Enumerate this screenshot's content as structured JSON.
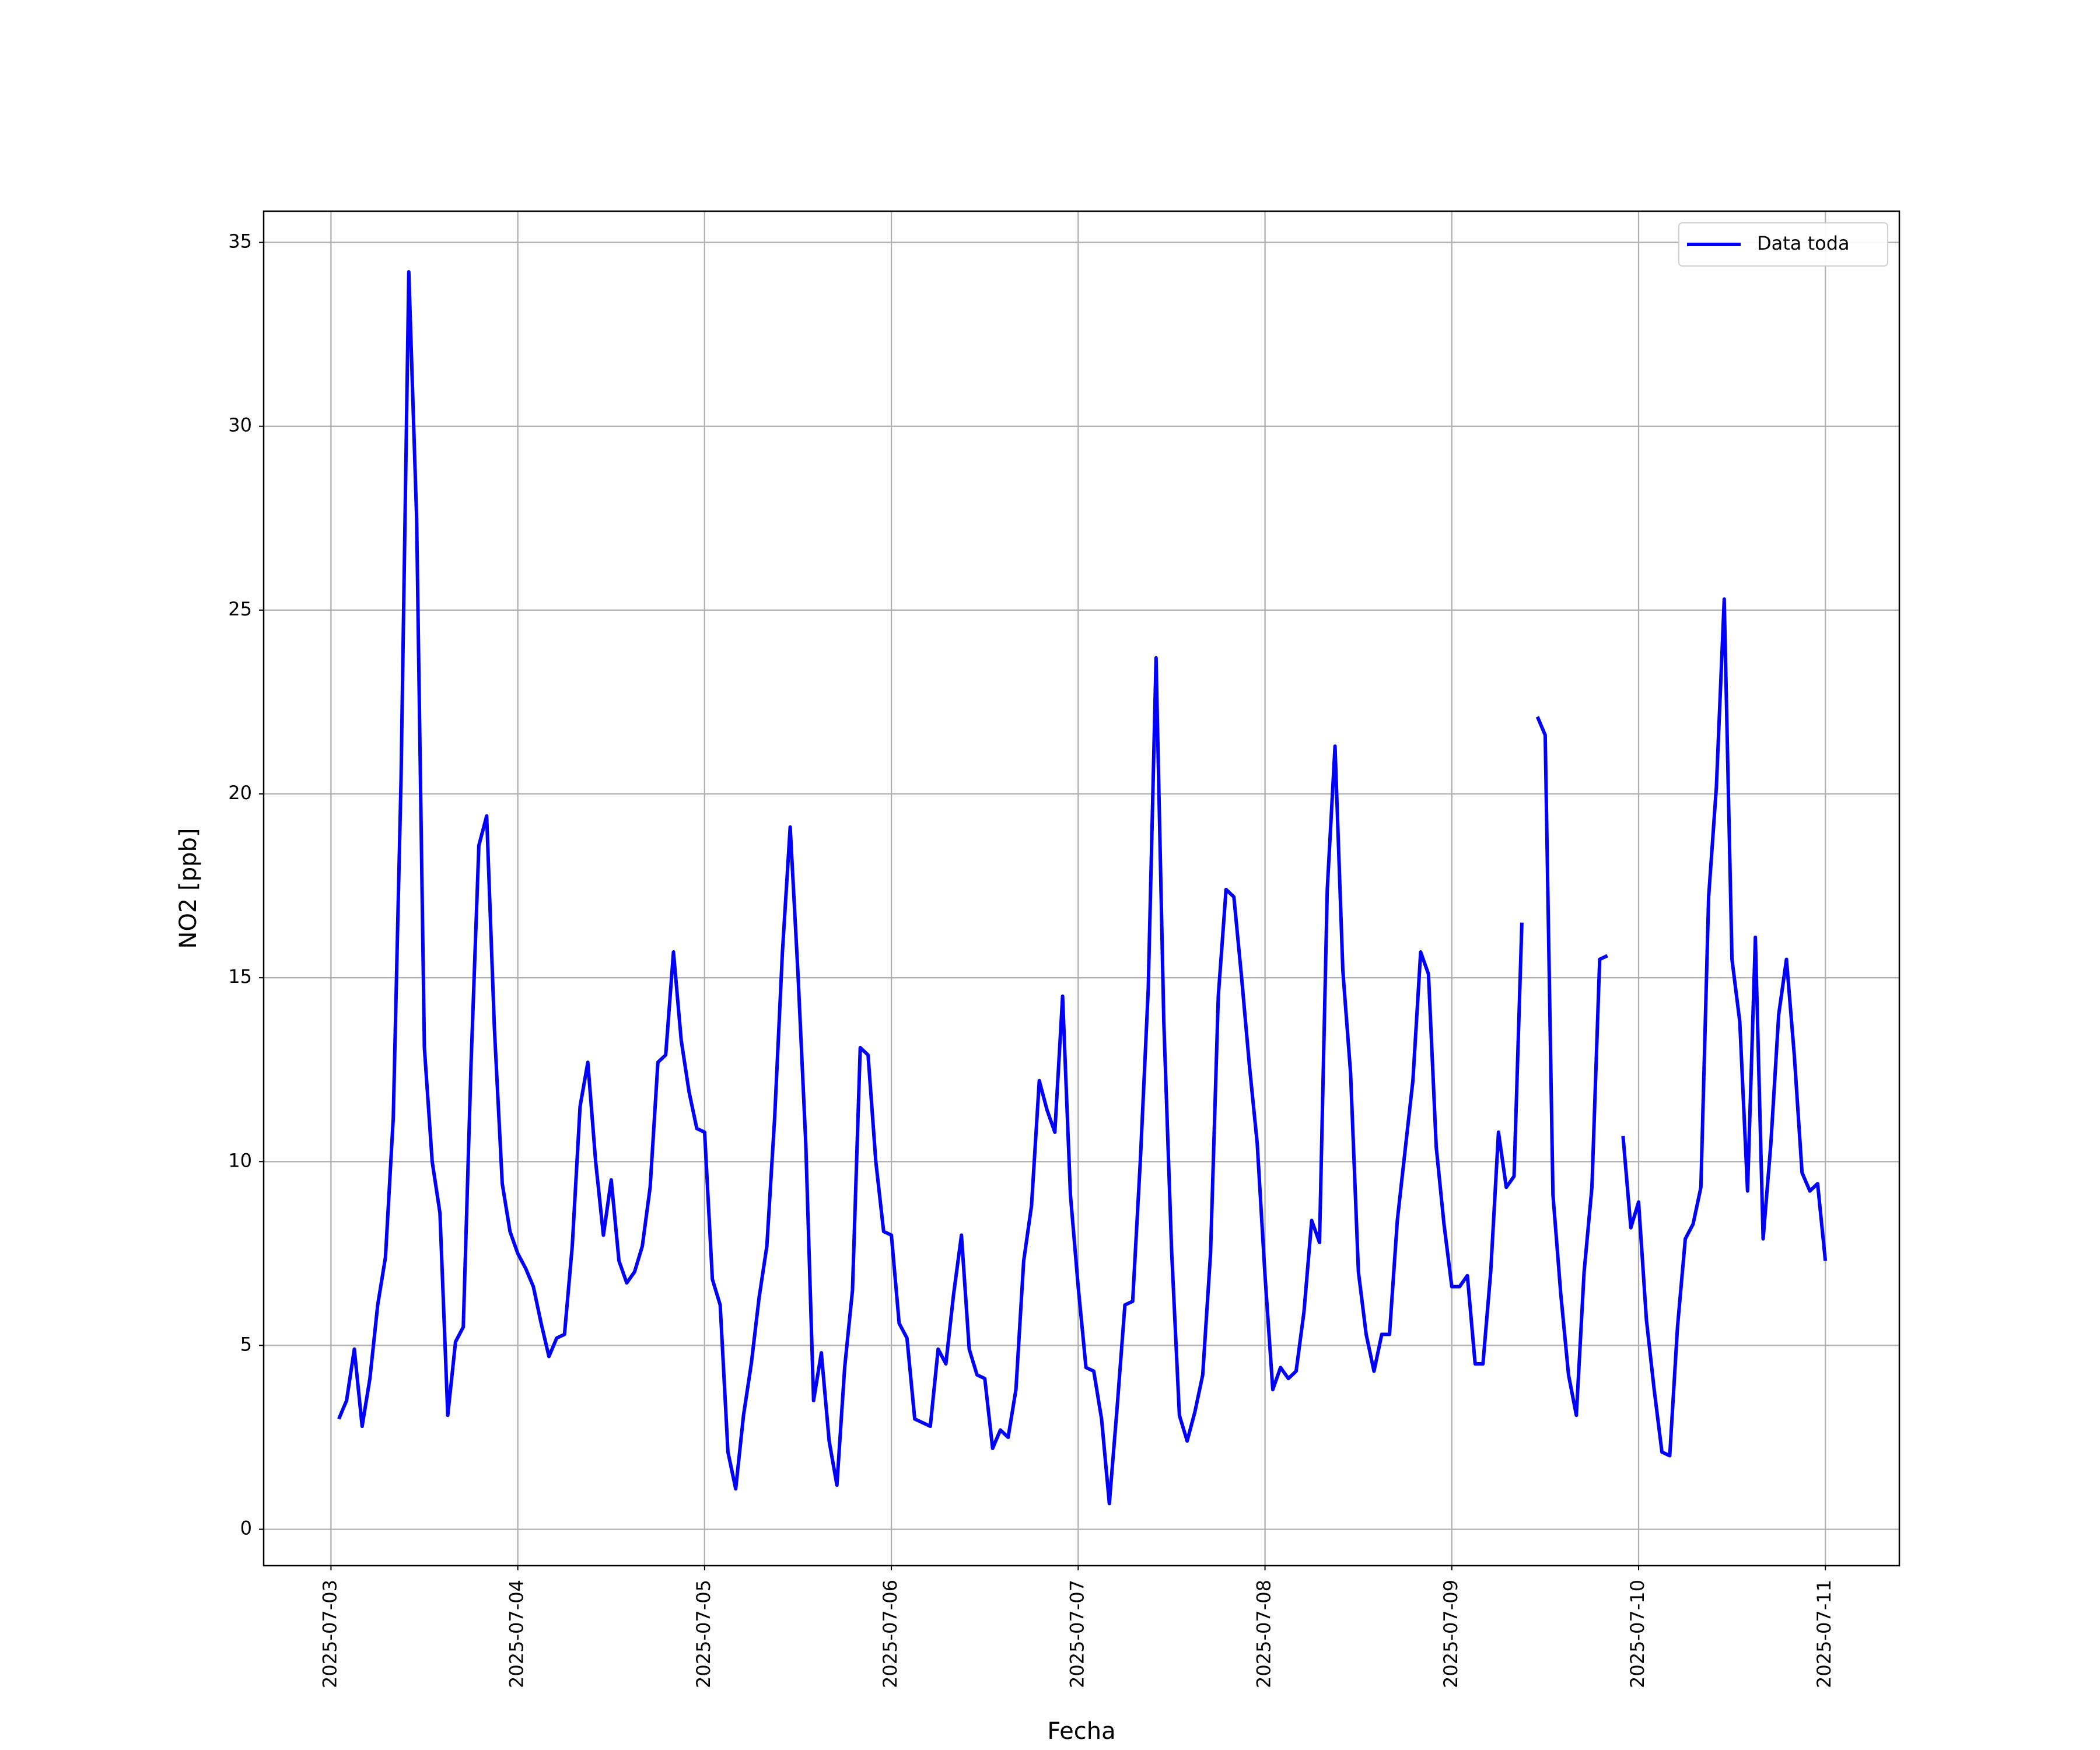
{
  "chart_data": {
    "type": "line",
    "xlabel": "Fecha",
    "ylabel": "NO2 [ppb]",
    "x": [
      "2025-07-03 01:00",
      "2025-07-03 02:00",
      "2025-07-03 03:00",
      "2025-07-03 04:00",
      "2025-07-03 05:00",
      "2025-07-03 06:00",
      "2025-07-03 07:00",
      "2025-07-03 08:00",
      "2025-07-03 09:00",
      "2025-07-03 10:00",
      "2025-07-03 11:00",
      "2025-07-03 12:00",
      "2025-07-03 13:00",
      "2025-07-03 14:00",
      "2025-07-03 15:00",
      "2025-07-03 16:00",
      "2025-07-03 17:00",
      "2025-07-03 18:00",
      "2025-07-03 19:00",
      "2025-07-03 20:00",
      "2025-07-03 21:00",
      "2025-07-03 22:00",
      "2025-07-03 23:00",
      "2025-07-04 00:00",
      "2025-07-04 01:00",
      "2025-07-04 02:00",
      "2025-07-04 03:00",
      "2025-07-04 04:00",
      "2025-07-04 05:00",
      "2025-07-04 06:00",
      "2025-07-04 07:00",
      "2025-07-04 08:00",
      "2025-07-04 09:00",
      "2025-07-04 10:00",
      "2025-07-04 11:00",
      "2025-07-04 12:00",
      "2025-07-04 13:00",
      "2025-07-04 14:00",
      "2025-07-04 15:00",
      "2025-07-04 16:00",
      "2025-07-04 17:00",
      "2025-07-04 18:00",
      "2025-07-04 19:00",
      "2025-07-04 20:00",
      "2025-07-04 21:00",
      "2025-07-04 22:00",
      "2025-07-04 23:00",
      "2025-07-05 00:00",
      "2025-07-05 01:00",
      "2025-07-05 02:00",
      "2025-07-05 03:00",
      "2025-07-05 04:00",
      "2025-07-05 05:00",
      "2025-07-05 06:00",
      "2025-07-05 07:00",
      "2025-07-05 08:00",
      "2025-07-05 09:00",
      "2025-07-05 10:00",
      "2025-07-05 11:00",
      "2025-07-05 12:00",
      "2025-07-05 13:00",
      "2025-07-05 14:00",
      "2025-07-05 15:00",
      "2025-07-05 16:00",
      "2025-07-05 17:00",
      "2025-07-05 18:00",
      "2025-07-05 19:00",
      "2025-07-05 20:00",
      "2025-07-05 21:00",
      "2025-07-05 22:00",
      "2025-07-05 23:00",
      "2025-07-06 00:00",
      "2025-07-06 01:00",
      "2025-07-06 02:00",
      "2025-07-06 03:00",
      "2025-07-06 04:00",
      "2025-07-06 05:00",
      "2025-07-06 06:00",
      "2025-07-06 07:00",
      "2025-07-06 08:00",
      "2025-07-06 09:00",
      "2025-07-06 10:00",
      "2025-07-06 11:00",
      "2025-07-06 12:00",
      "2025-07-06 13:00",
      "2025-07-06 14:00",
      "2025-07-06 15:00",
      "2025-07-06 16:00",
      "2025-07-06 17:00",
      "2025-07-06 18:00",
      "2025-07-06 19:00",
      "2025-07-06 20:00",
      "2025-07-06 21:00",
      "2025-07-06 22:00",
      "2025-07-06 23:00",
      "2025-07-07 00:00",
      "2025-07-07 01:00",
      "2025-07-07 02:00",
      "2025-07-07 03:00",
      "2025-07-07 04:00",
      "2025-07-07 05:00",
      "2025-07-07 06:00",
      "2025-07-07 07:00",
      "2025-07-07 08:00",
      "2025-07-07 09:00",
      "2025-07-07 10:00",
      "2025-07-07 11:00",
      "2025-07-07 12:00",
      "2025-07-07 13:00",
      "2025-07-07 14:00",
      "2025-07-07 15:00",
      "2025-07-07 16:00",
      "2025-07-07 17:00",
      "2025-07-07 18:00",
      "2025-07-07 19:00",
      "2025-07-07 20:00",
      "2025-07-07 21:00",
      "2025-07-07 22:00",
      "2025-07-07 23:00",
      "2025-07-08 00:00",
      "2025-07-08 01:00",
      "2025-07-08 02:00",
      "2025-07-08 03:00",
      "2025-07-08 04:00",
      "2025-07-08 05:00",
      "2025-07-08 06:00",
      "2025-07-08 07:00",
      "2025-07-08 08:00",
      "2025-07-08 09:00",
      "2025-07-08 10:00",
      "2025-07-08 11:00",
      "2025-07-08 12:00",
      "2025-07-08 13:00",
      "2025-07-08 14:00",
      "2025-07-08 15:00",
      "2025-07-08 16:00",
      "2025-07-08 17:00",
      "2025-07-08 18:00",
      "2025-07-08 19:00",
      "2025-07-08 20:00",
      "2025-07-08 21:00",
      "2025-07-08 22:00",
      "2025-07-08 23:00",
      "2025-07-09 00:00",
      "2025-07-09 01:00",
      "2025-07-09 02:00",
      "2025-07-09 03:00",
      "2025-07-09 04:00",
      "2025-07-09 05:00",
      "2025-07-09 06:00",
      "2025-07-09 07:00",
      "2025-07-09 08:00",
      "2025-07-09 09:00",
      "2025-07-09 10:00",
      "2025-07-09 11:00",
      "2025-07-09 12:00",
      "2025-07-09 13:00",
      "2025-07-09 14:00",
      "2025-07-09 15:00",
      "2025-07-09 16:00",
      "2025-07-09 17:00",
      "2025-07-09 18:00",
      "2025-07-09 19:00",
      "2025-07-09 20:00",
      "2025-07-09 21:00",
      "2025-07-09 22:00",
      "2025-07-09 23:00",
      "2025-07-10 00:00",
      "2025-07-10 01:00",
      "2025-07-10 02:00",
      "2025-07-10 03:00",
      "2025-07-10 04:00",
      "2025-07-10 05:00",
      "2025-07-10 06:00",
      "2025-07-10 07:00",
      "2025-07-10 08:00",
      "2025-07-10 09:00",
      "2025-07-10 10:00",
      "2025-07-10 11:00",
      "2025-07-10 12:00",
      "2025-07-10 13:00",
      "2025-07-10 14:00",
      "2025-07-10 15:00",
      "2025-07-10 16:00",
      "2025-07-10 17:00",
      "2025-07-10 18:00",
      "2025-07-10 19:00",
      "2025-07-10 20:00",
      "2025-07-10 21:00",
      "2025-07-10 22:00",
      "2025-07-10 23:00",
      "2025-07-11 00:00"
    ],
    "series": [
      {
        "name": "Data toda",
        "color": "#0000ff",
        "values": [
          3.0,
          3.5,
          4.9,
          2.8,
          4.1,
          6.1,
          7.4,
          11.2,
          20.4,
          34.2,
          27.5,
          13.1,
          10.0,
          8.6,
          3.1,
          5.1,
          5.5,
          12.7,
          18.6,
          19.4,
          13.6,
          9.4,
          8.1,
          7.5,
          7.1,
          6.6,
          5.6,
          4.7,
          5.2,
          5.3,
          7.7,
          11.5,
          12.7,
          10.0,
          8.0,
          9.5,
          7.3,
          6.7,
          7.0,
          7.7,
          9.3,
          12.7,
          12.9,
          15.7,
          13.3,
          11.9,
          10.9,
          10.8,
          6.8,
          6.1,
          2.1,
          1.1,
          3.1,
          4.5,
          6.3,
          7.7,
          11.2,
          15.7,
          19.1,
          15.1,
          10.5,
          3.5,
          4.8,
          2.4,
          1.2,
          4.4,
          6.5,
          13.1,
          12.9,
          10.0,
          8.1,
          8.0,
          5.6,
          5.2,
          3.0,
          2.9,
          2.8,
          4.9,
          4.5,
          6.4,
          8.0,
          4.9,
          4.2,
          4.1,
          2.2,
          2.7,
          2.5,
          3.8,
          7.3,
          8.8,
          12.2,
          11.4,
          10.8,
          14.5,
          9.1,
          6.6,
          4.4,
          4.3,
          3.0,
          0.7,
          3.3,
          6.1,
          6.2,
          10.1,
          14.7,
          23.7,
          13.8,
          7.6,
          3.1,
          2.4,
          3.2,
          4.2,
          7.5,
          14.5,
          17.4,
          17.2,
          15.0,
          12.6,
          10.5,
          6.9,
          3.8,
          4.4,
          4.1,
          4.3,
          5.9,
          8.4,
          7.8,
          17.4,
          21.3,
          15.2,
          12.4,
          7.0,
          5.3,
          4.3,
          5.3,
          5.3,
          8.4,
          10.3,
          12.2,
          15.7,
          15.1,
          10.4,
          8.3,
          6.6,
          6.6,
          6.9,
          4.5,
          4.5,
          7.0,
          10.8,
          9.3,
          9.6,
          16.5,
          null,
          22.1,
          21.6,
          9.1,
          6.4,
          4.2,
          3.1,
          7.0,
          9.3,
          15.5,
          15.6,
          null,
          10.7,
          8.2,
          8.9,
          5.7,
          3.8,
          2.1,
          2.0,
          5.5,
          7.9,
          8.3,
          9.3,
          17.2,
          20.2,
          25.3,
          15.5,
          13.8,
          9.2,
          16.1,
          7.9,
          10.5,
          14.0,
          15.5,
          12.9,
          9.7,
          9.2,
          9.4,
          7.3
        ]
      }
    ],
    "xlim": [
      "2025-07-02 15:21",
      "2025-07-11 09:30"
    ],
    "xticks": [
      "2025-07-03",
      "2025-07-04",
      "2025-07-05",
      "2025-07-06",
      "2025-07-07",
      "2025-07-08",
      "2025-07-09",
      "2025-07-10",
      "2025-07-11"
    ],
    "ylim": [
      -0.99,
      35.85
    ],
    "yticks": [
      0,
      5,
      10,
      15,
      20,
      25,
      30,
      35
    ],
    "grid": true,
    "legend": "upper right"
  }
}
